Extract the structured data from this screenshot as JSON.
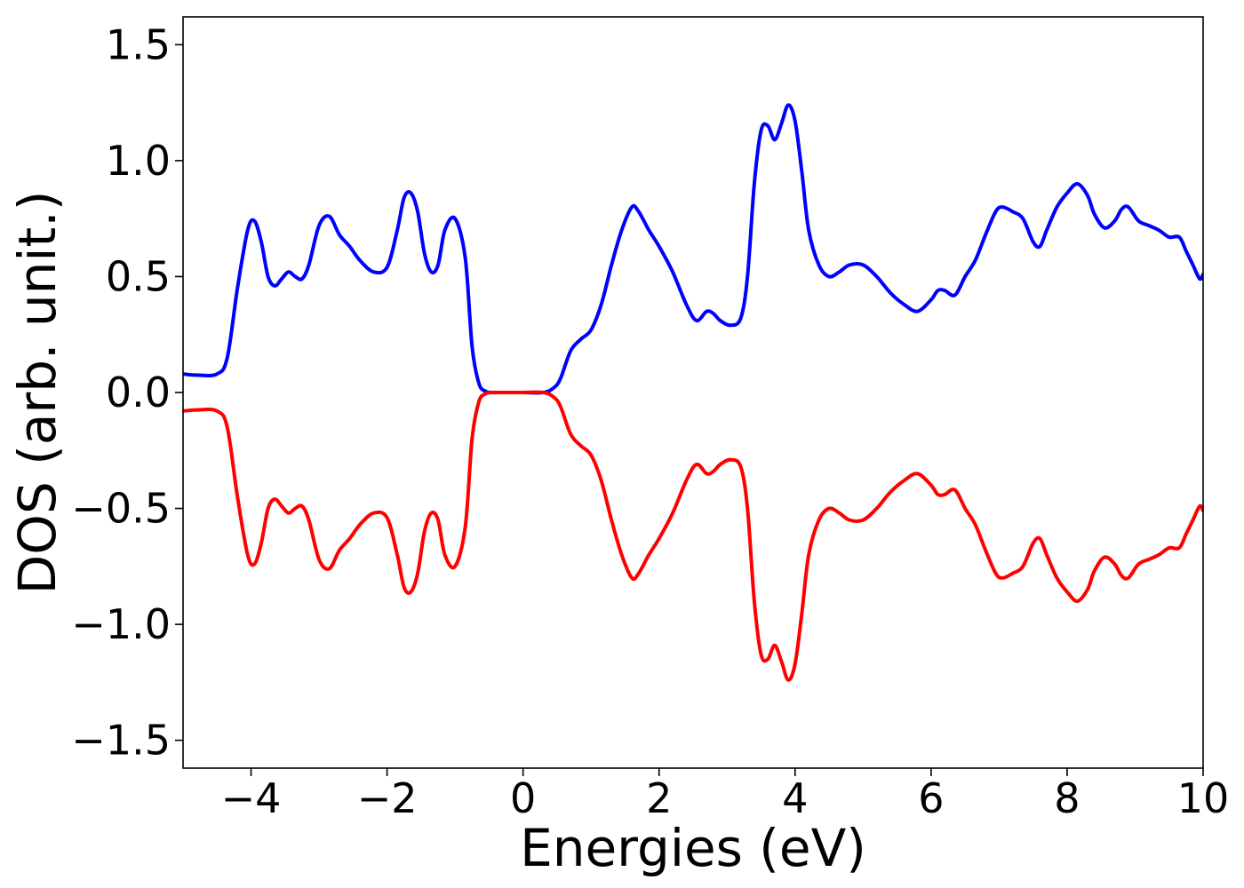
{
  "chart_data": {
    "type": "line",
    "xlabel": "Energies (eV)",
    "ylabel": "DOS (arb. unit.)",
    "xlim": [
      -5,
      10
    ],
    "ylim": [
      -1.62,
      1.62
    ],
    "xticks": [
      -4,
      -2,
      0,
      2,
      4,
      6,
      8,
      10
    ],
    "xtick_labels": [
      "−4",
      "−2",
      "0",
      "2",
      "4",
      "6",
      "8",
      "10"
    ],
    "yticks": [
      -1.5,
      -1.0,
      -0.5,
      0.0,
      0.5,
      1.0,
      1.5
    ],
    "ytick_labels": [
      "−1.5",
      "−1.0",
      "−0.5",
      "0.0",
      "0.5",
      "1.0",
      "1.5"
    ],
    "grid": false,
    "series": [
      {
        "color": "#0000ff",
        "x": [
          -5.0,
          -4.8,
          -4.5,
          -4.35,
          -4.2,
          -4.05,
          -3.95,
          -3.85,
          -3.75,
          -3.65,
          -3.55,
          -3.45,
          -3.35,
          -3.25,
          -3.15,
          -3.0,
          -2.85,
          -2.7,
          -2.55,
          -2.4,
          -2.2,
          -2.0,
          -1.85,
          -1.75,
          -1.65,
          -1.55,
          -1.45,
          -1.35,
          -1.25,
          -1.15,
          -1.0,
          -0.85,
          -0.75,
          -0.65,
          -0.55,
          -0.45,
          -0.3,
          0.0,
          0.3,
          0.45,
          0.55,
          0.7,
          0.85,
          1.0,
          1.15,
          1.3,
          1.45,
          1.6,
          1.7,
          1.85,
          2.0,
          2.2,
          2.4,
          2.55,
          2.7,
          2.8,
          2.9,
          3.05,
          3.2,
          3.3,
          3.4,
          3.5,
          3.6,
          3.7,
          3.8,
          3.9,
          4.0,
          4.1,
          4.2,
          4.35,
          4.5,
          4.65,
          4.8,
          5.0,
          5.2,
          5.4,
          5.6,
          5.8,
          6.0,
          6.1,
          6.2,
          6.35,
          6.5,
          6.65,
          6.8,
          6.95,
          7.05,
          7.2,
          7.35,
          7.5,
          7.6,
          7.7,
          7.85,
          8.0,
          8.15,
          8.3,
          8.4,
          8.55,
          8.7,
          8.8,
          8.9,
          9.05,
          9.2,
          9.35,
          9.5,
          9.65,
          9.75,
          9.85,
          9.95,
          10.0
        ],
        "y": [
          0.08,
          0.075,
          0.08,
          0.15,
          0.45,
          0.7,
          0.74,
          0.65,
          0.5,
          0.46,
          0.49,
          0.52,
          0.5,
          0.49,
          0.55,
          0.72,
          0.76,
          0.68,
          0.63,
          0.57,
          0.52,
          0.54,
          0.7,
          0.84,
          0.86,
          0.78,
          0.6,
          0.52,
          0.55,
          0.7,
          0.75,
          0.58,
          0.2,
          0.04,
          0.005,
          0.0,
          0.0,
          0.0,
          0.0,
          0.02,
          0.06,
          0.18,
          0.23,
          0.27,
          0.38,
          0.55,
          0.7,
          0.8,
          0.78,
          0.7,
          0.63,
          0.52,
          0.38,
          0.31,
          0.35,
          0.34,
          0.31,
          0.29,
          0.32,
          0.5,
          0.9,
          1.13,
          1.15,
          1.09,
          1.16,
          1.24,
          1.17,
          0.95,
          0.7,
          0.55,
          0.5,
          0.52,
          0.55,
          0.55,
          0.5,
          0.43,
          0.38,
          0.35,
          0.4,
          0.44,
          0.44,
          0.42,
          0.5,
          0.57,
          0.68,
          0.78,
          0.8,
          0.78,
          0.75,
          0.65,
          0.63,
          0.7,
          0.8,
          0.86,
          0.9,
          0.85,
          0.77,
          0.71,
          0.74,
          0.79,
          0.8,
          0.74,
          0.72,
          0.7,
          0.67,
          0.67,
          0.61,
          0.55,
          0.49,
          0.51
        ]
      },
      {
        "color": "#ff0000",
        "x": [
          -5.0,
          -4.8,
          -4.5,
          -4.35,
          -4.2,
          -4.05,
          -3.95,
          -3.85,
          -3.75,
          -3.65,
          -3.55,
          -3.45,
          -3.35,
          -3.25,
          -3.15,
          -3.0,
          -2.85,
          -2.7,
          -2.55,
          -2.4,
          -2.2,
          -2.0,
          -1.85,
          -1.75,
          -1.65,
          -1.55,
          -1.45,
          -1.35,
          -1.25,
          -1.15,
          -1.0,
          -0.85,
          -0.75,
          -0.65,
          -0.55,
          -0.45,
          -0.3,
          0.0,
          0.3,
          0.45,
          0.55,
          0.7,
          0.85,
          1.0,
          1.15,
          1.3,
          1.45,
          1.6,
          1.7,
          1.85,
          2.0,
          2.2,
          2.4,
          2.55,
          2.7,
          2.8,
          2.9,
          3.05,
          3.2,
          3.3,
          3.4,
          3.5,
          3.6,
          3.7,
          3.8,
          3.9,
          4.0,
          4.1,
          4.2,
          4.35,
          4.5,
          4.65,
          4.8,
          5.0,
          5.2,
          5.4,
          5.6,
          5.8,
          6.0,
          6.1,
          6.2,
          6.35,
          6.5,
          6.65,
          6.8,
          6.95,
          7.05,
          7.2,
          7.35,
          7.5,
          7.6,
          7.7,
          7.85,
          8.0,
          8.15,
          8.3,
          8.4,
          8.55,
          8.7,
          8.8,
          8.9,
          9.05,
          9.2,
          9.35,
          9.5,
          9.65,
          9.75,
          9.85,
          9.95,
          10.0
        ],
        "y": [
          -0.08,
          -0.075,
          -0.08,
          -0.15,
          -0.45,
          -0.7,
          -0.74,
          -0.65,
          -0.5,
          -0.46,
          -0.49,
          -0.52,
          -0.5,
          -0.49,
          -0.55,
          -0.72,
          -0.76,
          -0.68,
          -0.63,
          -0.57,
          -0.52,
          -0.54,
          -0.7,
          -0.84,
          -0.86,
          -0.78,
          -0.6,
          -0.52,
          -0.55,
          -0.7,
          -0.75,
          -0.58,
          -0.2,
          -0.04,
          -0.005,
          0.0,
          0.0,
          0.0,
          0.0,
          -0.02,
          -0.06,
          -0.18,
          -0.23,
          -0.27,
          -0.38,
          -0.55,
          -0.7,
          -0.8,
          -0.78,
          -0.7,
          -0.63,
          -0.52,
          -0.38,
          -0.31,
          -0.35,
          -0.34,
          -0.31,
          -0.29,
          -0.32,
          -0.5,
          -0.9,
          -1.13,
          -1.15,
          -1.09,
          -1.16,
          -1.24,
          -1.17,
          -0.95,
          -0.7,
          -0.55,
          -0.5,
          -0.52,
          -0.55,
          -0.55,
          -0.5,
          -0.43,
          -0.38,
          -0.35,
          -0.4,
          -0.44,
          -0.44,
          -0.42,
          -0.5,
          -0.57,
          -0.68,
          -0.78,
          -0.8,
          -0.78,
          -0.75,
          -0.65,
          -0.63,
          -0.7,
          -0.8,
          -0.86,
          -0.9,
          -0.85,
          -0.77,
          -0.71,
          -0.74,
          -0.79,
          -0.8,
          -0.74,
          -0.72,
          -0.7,
          -0.67,
          -0.67,
          -0.61,
          -0.55,
          -0.49,
          -0.51
        ]
      }
    ]
  }
}
